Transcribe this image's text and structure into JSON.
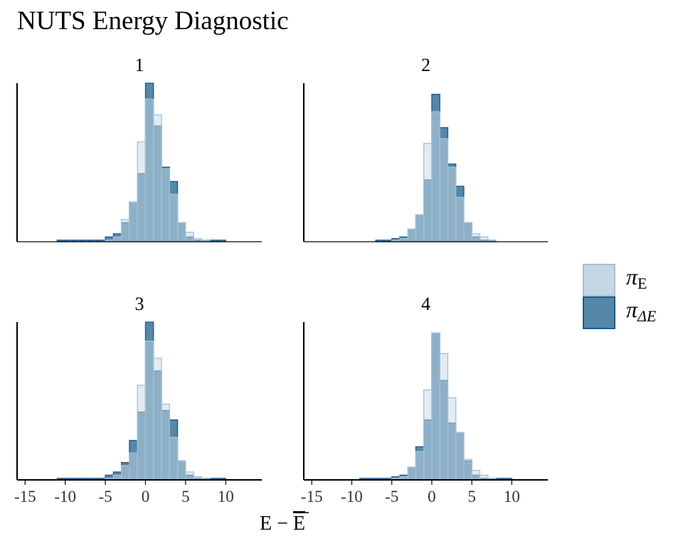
{
  "chart_data": {
    "type": "histogram",
    "title": "NUTS Energy Diagnostic",
    "xlabel": "E − E̅",
    "xlabel_main": "E − ",
    "xlabel_bar": "E",
    "ylabel": "",
    "xlim": [
      -16,
      14.5
    ],
    "xticks": [
      -15,
      -10,
      -5,
      0,
      5,
      10
    ],
    "bin_start": -11,
    "bin_width": 1,
    "legend": {
      "position": "right",
      "entries": [
        {
          "key": "E",
          "symbol": "π",
          "subscript": "E",
          "color": "#c5d7e6"
        },
        {
          "key": "dE",
          "symbol": "π",
          "subscript": "ΔE",
          "color": "#5588a8"
        }
      ]
    },
    "colors": {
      "E_fill": "#c5d7e6",
      "E_stroke": "#a4c0d7",
      "dE_fill": "#5588a8",
      "dE_stroke": "#1f5a87",
      "axis": "#000000",
      "text": "#000000",
      "tick_text": "#333333"
    },
    "panels": [
      {
        "label": "1",
        "E": [
          0,
          0,
          0,
          0,
          0,
          0,
          1,
          3,
          14,
          25,
          63,
          90,
          80,
          46,
          30,
          12,
          6,
          2,
          1,
          0,
          0,
          0,
          0,
          0,
          0
        ],
        "dE": [
          1,
          1,
          1,
          1,
          1,
          1,
          3,
          5,
          12,
          25,
          43,
          100,
          73,
          47,
          38,
          12,
          3,
          1,
          1,
          1,
          1,
          0,
          0,
          0,
          0
        ]
      },
      {
        "label": "2",
        "E": [
          0,
          0,
          0,
          0,
          0,
          0,
          1,
          2,
          8,
          17,
          62,
          82,
          65,
          47,
          28,
          12,
          5,
          3,
          1,
          0,
          0,
          0,
          0,
          0,
          0
        ],
        "dE": [
          0,
          0,
          0,
          0,
          1,
          1,
          2,
          3,
          8,
          17,
          39,
          93,
          72,
          49,
          35,
          12,
          3,
          1,
          1,
          0,
          0,
          0,
          0,
          0,
          0
        ]
      },
      {
        "label": "3",
        "E": [
          0,
          0,
          0,
          0,
          0,
          0,
          1,
          3,
          9,
          17,
          60,
          88,
          77,
          48,
          27,
          12,
          5,
          2,
          1,
          0,
          0,
          0,
          0,
          0,
          0
        ],
        "dE": [
          1,
          1,
          1,
          1,
          1,
          1,
          3,
          5,
          11,
          25,
          43,
          100,
          69,
          44,
          38,
          12,
          3,
          1,
          1,
          1,
          1,
          0,
          0,
          0,
          0
        ]
      },
      {
        "label": "4",
        "E": [
          0,
          0,
          0,
          0,
          0,
          0,
          1,
          2,
          8,
          18,
          57,
          93,
          80,
          52,
          30,
          13,
          6,
          3,
          1,
          0,
          0,
          0,
          0,
          0,
          0
        ],
        "dE": [
          0,
          0,
          1,
          1,
          1,
          1,
          2,
          3,
          8,
          21,
          38,
          93,
          63,
          36,
          30,
          12,
          3,
          1,
          1,
          1,
          1,
          0,
          0,
          0,
          0
        ]
      }
    ]
  }
}
